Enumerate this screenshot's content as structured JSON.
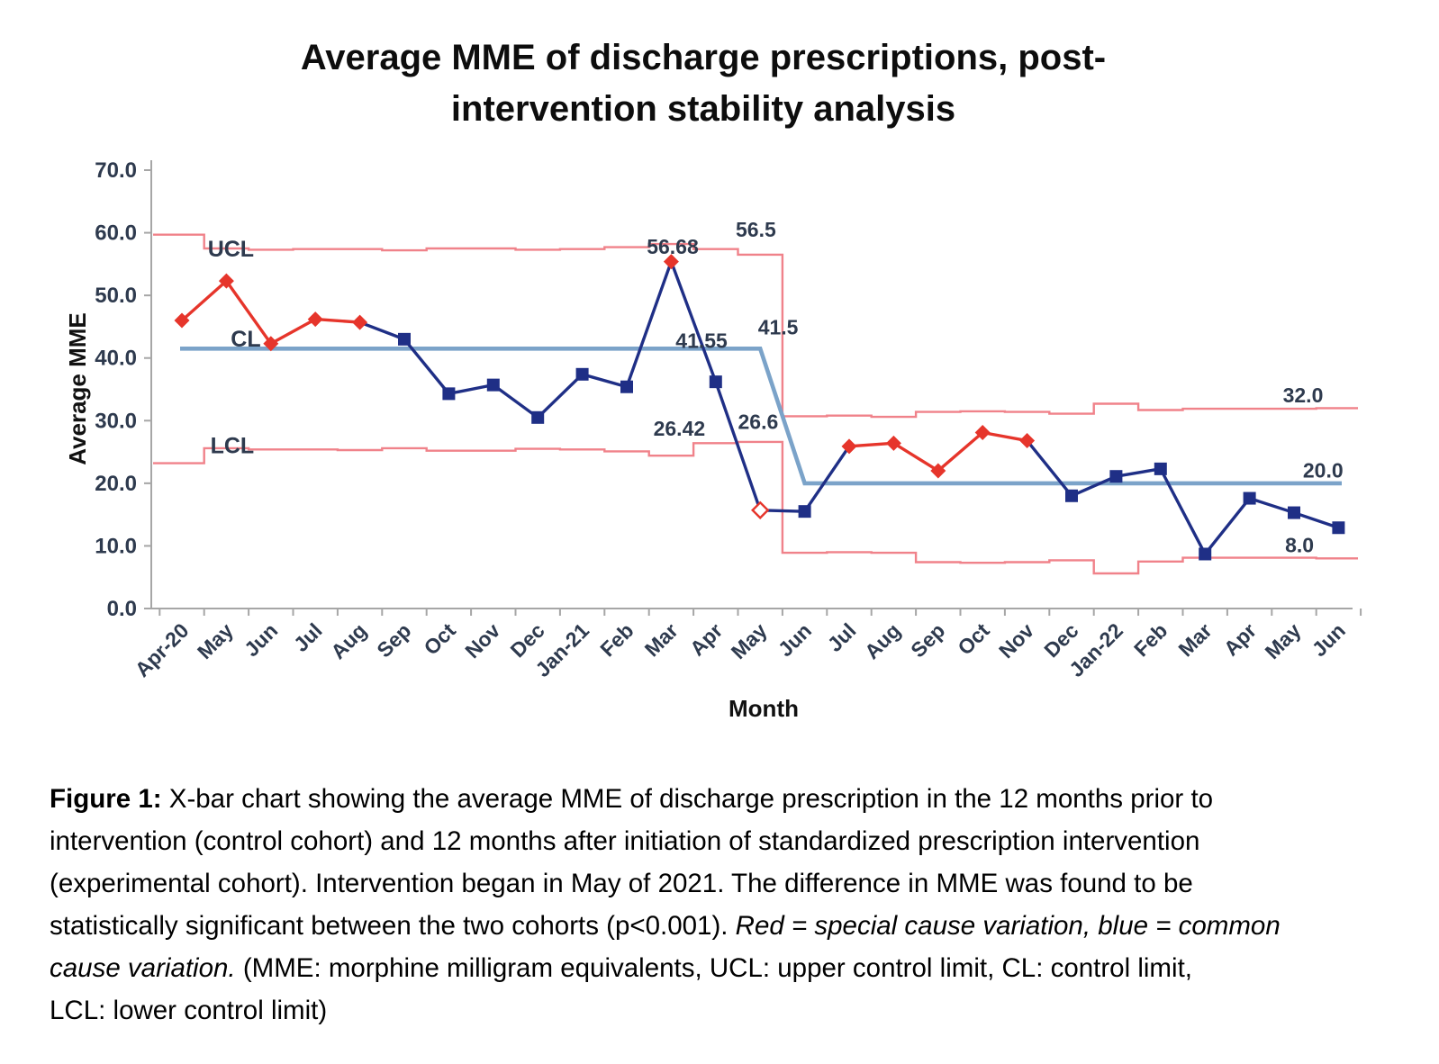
{
  "title_lines": [
    "Average MME of discharge prescriptions, post-",
    "intervention stability analysis"
  ],
  "chart_data": {
    "type": "line",
    "subtype": "xbar-control-chart",
    "title": "Average MME of discharge prescriptions, post-intervention stability analysis",
    "xlabel": "Month",
    "ylabel": "Average MME",
    "ylim": [
      0,
      70
    ],
    "ytick_step": 10,
    "ytick_labels": [
      "0.0",
      "10.0",
      "20.0",
      "30.0",
      "40.0",
      "50.0",
      "60.0",
      "70.0"
    ],
    "grid": false,
    "legend": "none",
    "categories": [
      "Apr-20",
      "May",
      "Jun",
      "Jul",
      "Aug",
      "Sep",
      "Oct",
      "Nov",
      "Dec",
      "Jan-21",
      "Feb",
      "Mar",
      "Apr",
      "May",
      "Jun",
      "Jul",
      "Aug",
      "Sep",
      "Oct",
      "Nov",
      "Dec",
      "Jan-22",
      "Feb",
      "Mar",
      "Apr",
      "May",
      "Jun"
    ],
    "series": [
      {
        "name": "Average MME",
        "values": [
          46.0,
          52.3,
          42.3,
          46.2,
          45.7,
          43.0,
          34.3,
          35.7,
          30.5,
          37.4,
          35.4,
          55.4,
          36.2,
          15.7,
          15.5,
          25.9,
          26.4,
          22.0,
          28.1,
          26.8,
          18.0,
          21.1,
          22.3,
          8.7,
          17.6,
          15.3,
          12.9
        ],
        "cause": [
          "special",
          "special",
          "special",
          "special",
          "special",
          "common",
          "common",
          "common",
          "common",
          "common",
          "common",
          "special",
          "common",
          "special-open",
          "common",
          "special",
          "special",
          "special",
          "special",
          "special",
          "common",
          "common",
          "common",
          "common",
          "common",
          "common",
          "common"
        ]
      },
      {
        "name": "UCL",
        "style": "step",
        "values": [
          59.7,
          57.5,
          57.3,
          57.4,
          57.4,
          57.2,
          57.5,
          57.5,
          57.3,
          57.4,
          57.7,
          58.2,
          57.4,
          56.5,
          30.7,
          30.8,
          30.6,
          31.4,
          31.5,
          31.4,
          31.1,
          32.7,
          31.7,
          31.9,
          31.9,
          31.9,
          32.0
        ]
      },
      {
        "name": "LCL",
        "style": "step",
        "values": [
          23.2,
          25.6,
          25.4,
          25.4,
          25.3,
          25.6,
          25.2,
          25.2,
          25.5,
          25.4,
          25.1,
          24.4,
          26.4,
          26.6,
          8.9,
          9.0,
          8.9,
          7.4,
          7.3,
          7.4,
          7.7,
          5.6,
          7.5,
          8.1,
          8.1,
          8.1,
          8.0
        ]
      },
      {
        "name": "CL",
        "style": "segmented",
        "values": [
          41.5,
          41.5,
          41.5,
          41.5,
          41.5,
          41.5,
          41.5,
          41.5,
          41.5,
          41.5,
          41.5,
          41.5,
          41.5,
          41.5,
          20.0,
          20.0,
          20.0,
          20.0,
          20.0,
          20.0,
          20.0,
          20.0,
          20.0,
          20.0,
          20.0,
          20.0,
          20.0
        ]
      }
    ],
    "annotations": [
      {
        "text": "UCL",
        "xi": 0.58,
        "v": 56.2,
        "size": 25
      },
      {
        "text": "CL",
        "xi": 1.1,
        "v": 41.8,
        "size": 25
      },
      {
        "text": "LCL",
        "xi": 0.64,
        "v": 24.8,
        "size": 25
      },
      {
        "text": "56.68",
        "xi": 10.45,
        "v": 56.6,
        "size": 23
      },
      {
        "text": "56.5",
        "xi": 12.45,
        "v": 59.4,
        "size": 23
      },
      {
        "text": "41.55",
        "xi": 11.1,
        "v": 41.6,
        "size": 23
      },
      {
        "text": "41.5",
        "xi": 12.95,
        "v": 43.8,
        "size": 23
      },
      {
        "text": "26.6",
        "xi": 12.5,
        "v": 28.7,
        "size": 23
      },
      {
        "text": "26.42",
        "xi": 10.6,
        "v": 27.6,
        "size": 23
      },
      {
        "text": "32.0",
        "xi": 24.75,
        "v": 32.9,
        "size": 23
      },
      {
        "text": "20.0",
        "xi": 25.2,
        "v": 20.9,
        "size": 23
      },
      {
        "text": "8.0",
        "xi": 24.8,
        "v": 9.0,
        "size": 23
      }
    ]
  },
  "caption": {
    "lines": [
      [
        {
          "t": "Figure 1:",
          "b": true
        },
        {
          "t": " X-bar chart showing the average MME of discharge prescription in the 12 months prior to"
        }
      ],
      [
        {
          "t": "intervention (control cohort) and 12 months after initiation of standardized prescription intervention"
        }
      ],
      [
        {
          "t": "(experimental cohort). Intervention began in May of 2021. The difference in MME was found to be"
        }
      ],
      [
        {
          "t": "statistically significant between the two cohorts (p<0.001). "
        },
        {
          "t": "Red = special cause variation, blue = common",
          "i": true
        }
      ],
      [
        {
          "t": "cause variation.",
          "i": true
        },
        {
          "t": " (MME: morphine milligram equivalents, UCL: upper control limit, CL: control limit,"
        }
      ],
      [
        {
          "t": "LCL: lower control limit)"
        }
      ]
    ]
  },
  "colors": {
    "special_cause_red": "#e6352b",
    "common_cause_navy": "#1f2f86",
    "center_line_blue": "#7ba3c9",
    "control_limit_pink": "#f0828a",
    "axis_gray": "#a6a6a6",
    "label_dark": "#2e3a4e",
    "title_black": "#0d0d0d"
  }
}
